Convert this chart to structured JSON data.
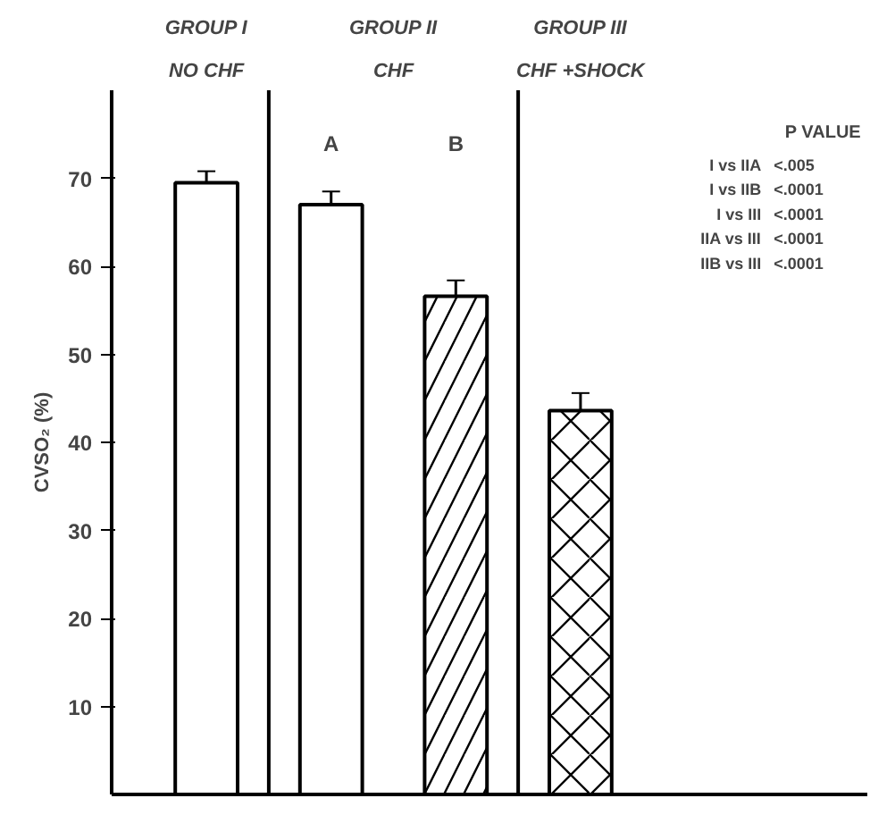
{
  "chart_data": {
    "type": "bar",
    "ylabel": "CVSO₂ (%)",
    "categories": [
      null,
      "A",
      "B",
      null
    ],
    "values": [
      69.5,
      67,
      56.6,
      43.6
    ],
    "errors": [
      1.3,
      1.5,
      1.8,
      2
    ],
    "colors": [
      "#ffffff",
      "#ffffff",
      "#ffffff",
      "#ffffff"
    ],
    "ylim": [
      0,
      80
    ],
    "yticks": [
      10,
      20,
      30,
      40,
      50,
      60,
      70
    ],
    "tick_labels": "y",
    "grid": false,
    "annotations": [
      "GROUP I",
      "NO CHF",
      "GROUP II",
      "CHF",
      "GROUP III",
      "CHF +SHOCK",
      "P VALUE",
      "I vs IIA",
      "<.005",
      "I vs IIB",
      "<.0001",
      "I vs III",
      "<.0001",
      "IIA vs III",
      "<.0001",
      "IIB vs III",
      "<.0001"
    ]
  }
}
